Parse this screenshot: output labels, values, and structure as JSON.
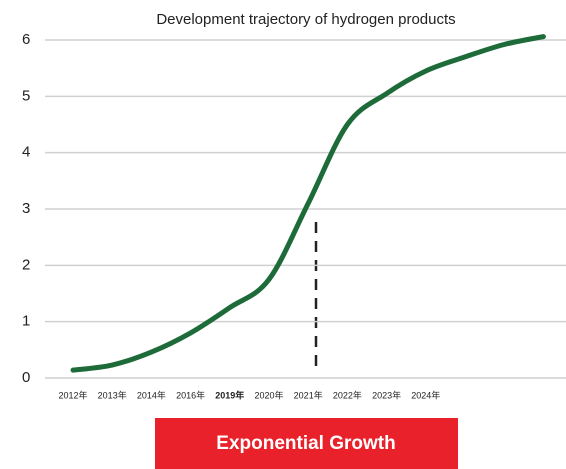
{
  "chart_data": {
    "type": "line",
    "title": "Development trajectory of hydrogen products",
    "categories": [
      "2012年",
      "2013年",
      "2014年",
      "2016年",
      "2019年",
      "2020年",
      "2021年",
      "2022年",
      "2023年",
      "2024年",
      null,
      null,
      null
    ],
    "values": [
      0.14,
      0.23,
      0.46,
      0.8,
      1.25,
      1.75,
      3.1,
      4.5,
      5.05,
      5.45,
      5.7,
      5.92,
      6.06
    ],
    "color": "#1e6b3a",
    "highlight_index": 4,
    "ylim": [
      0,
      6
    ],
    "yticks": [
      0,
      1,
      2,
      3,
      4,
      5,
      6
    ],
    "grid": true,
    "annotation": "Exponential Growth"
  }
}
